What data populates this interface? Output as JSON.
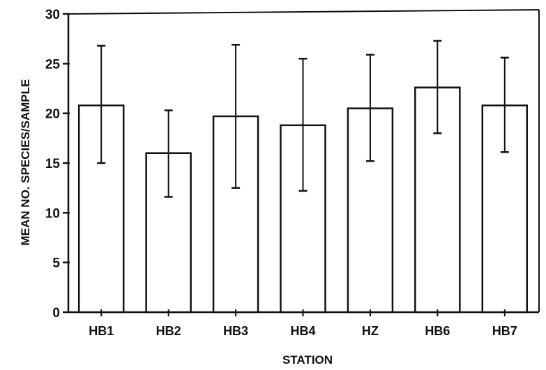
{
  "chart_data": {
    "type": "bar",
    "title": "",
    "xlabel": "STATION",
    "ylabel": "MEAN NO. SPECIES/SAMPLE",
    "categories": [
      "HB1",
      "HB2",
      "HB3",
      "HB4",
      "HZ",
      "HB6",
      "HB7"
    ],
    "series": [
      {
        "values": [
          20.8,
          16.0,
          19.7,
          18.8,
          20.5,
          22.6,
          20.8
        ],
        "error_low": [
          15.0,
          11.6,
          12.5,
          12.2,
          15.2,
          18.0,
          16.1
        ],
        "error_high": [
          26.8,
          20.3,
          26.9,
          25.5,
          25.9,
          27.3,
          25.6
        ]
      }
    ],
    "ylim": [
      0,
      30
    ],
    "yticks": [
      0,
      5,
      10,
      15,
      20,
      25,
      30
    ],
    "ytick_labels": [
      "0",
      "5",
      "10",
      "15",
      "20",
      "25",
      "30"
    ],
    "grid": false,
    "legend": "none",
    "colors": {
      "bar_fill": "#ffffff",
      "stroke": "#111111"
    }
  }
}
